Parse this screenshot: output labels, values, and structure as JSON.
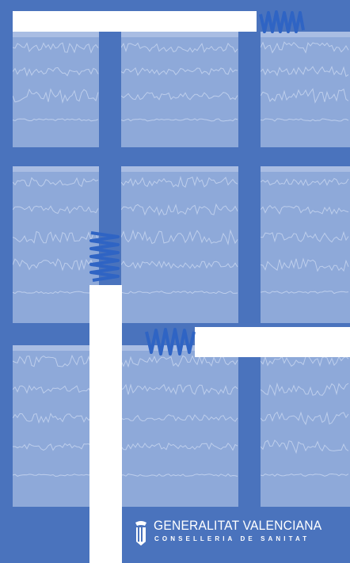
{
  "cover": {
    "palette": {
      "background": "#4a73bd",
      "panel": "#8ea9d9",
      "panel_band": "#a9bde3",
      "trace": "#c9d7f0",
      "spring": "#2f64c4",
      "bar": "#ffffff"
    },
    "logo": {
      "name": "GENERALITAT VALENCIANA",
      "department": "CONSELLERIA DE SANITAT",
      "crest_icon": "coat-of-arms-icon"
    }
  }
}
